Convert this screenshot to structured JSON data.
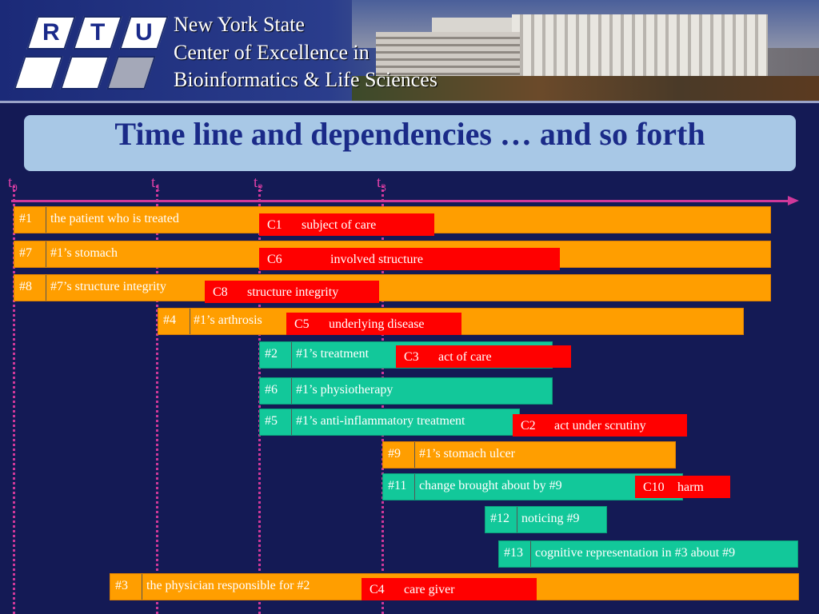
{
  "header": {
    "logo_letters": [
      "R",
      "T",
      "U"
    ],
    "org_lines": [
      "New York State",
      "Center of Excellence in",
      "Bioinformatics & Life Sciences"
    ]
  },
  "title": "Time line and dependencies … and so forth",
  "timepoints": [
    {
      "base": "t",
      "sub": "0"
    },
    {
      "base": "t",
      "sub": "1"
    },
    {
      "base": "t",
      "sub": "2"
    },
    {
      "base": "t",
      "sub": "3"
    }
  ],
  "bars": [
    {
      "id": "#1",
      "label": "the patient who is treated",
      "color": "orange"
    },
    {
      "id": "#7",
      "label": "#1’s stomach",
      "color": "orange"
    },
    {
      "id": "#8",
      "label": "#7’s structure integrity",
      "color": "orange"
    },
    {
      "id": "#4",
      "label": "#1’s arthrosis",
      "color": "orange"
    },
    {
      "id": "#2",
      "label": "#1’s treatment",
      "color": "teal"
    },
    {
      "id": "#6",
      "label": "#1’s physiotherapy",
      "color": "teal"
    },
    {
      "id": "#5",
      "label": "#1’s anti-inflammatory treatment",
      "color": "teal"
    },
    {
      "id": "#9",
      "label": "#1’s stomach ulcer",
      "color": "orange"
    },
    {
      "id": "#11",
      "label": "change brought about by #9",
      "color": "teal"
    },
    {
      "id": "#12",
      "label": "noticing #9",
      "color": "teal"
    },
    {
      "id": "#13",
      "label": "cognitive representation in #3 about #9",
      "color": "teal"
    },
    {
      "id": "#3",
      "label": "the physician responsible for #2",
      "color": "orange"
    }
  ],
  "categories": [
    {
      "id": "C1",
      "name": "subject of care"
    },
    {
      "id": "C6",
      "name": "involved structure"
    },
    {
      "id": "C8",
      "name": "structure integrity"
    },
    {
      "id": "C5",
      "name": "underlying disease"
    },
    {
      "id": "C3",
      "name": "act of care"
    },
    {
      "id": "C2",
      "name": "act under scrutiny"
    },
    {
      "id": "C10",
      "name": "harm"
    },
    {
      "id": "C4",
      "name": "care giver"
    }
  ],
  "colors": {
    "orange": "#ff9e00",
    "teal": "#12c89a",
    "category_red": "#ff0000",
    "timeline_magenta": "#d0389a",
    "title_box": "#a8c8e6",
    "title_text": "#1a2a88",
    "background": "#141a55"
  }
}
